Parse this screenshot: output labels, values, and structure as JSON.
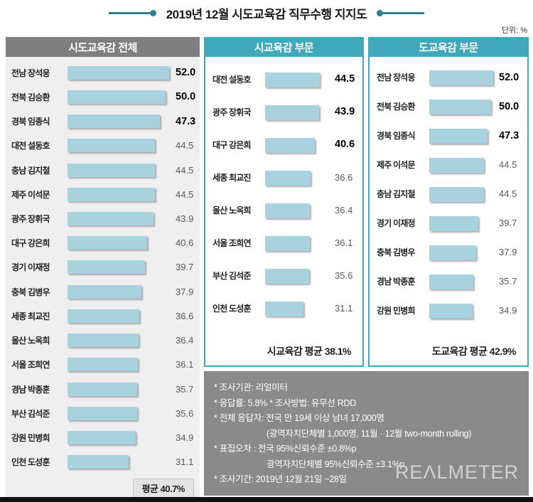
{
  "title": "2019년 12월 시도교육감 직무수행 지지도",
  "unit_label": "단위: %",
  "colors": {
    "accent_teal_dark": "#2e7e8e",
    "accent_teal": "#41a7ba",
    "header_gray": "#7f7f7f",
    "bar_fill": "#a8d2df",
    "panel_bg": "#efefef",
    "notes_bg": "#8a8a8a",
    "bottom_bar": "#111111"
  },
  "chart_data": [
    {
      "type": "bar",
      "orientation": "horizontal",
      "title": "시도교육감 전체",
      "categories": [
        "전남 장석웅",
        "전북 김승환",
        "경북 임종식",
        "대전 설동호",
        "충남 김지철",
        "제주 이석문",
        "광주 장휘국",
        "대구 강은희",
        "경기 이재정",
        "충북 김병우",
        "세종 최교진",
        "울산 노옥희",
        "서울 조희연",
        "경남 박종훈",
        "부산 김석준",
        "강원 민병희",
        "인천 도성훈"
      ],
      "values": [
        52.0,
        50.0,
        47.3,
        44.5,
        44.5,
        44.5,
        43.9,
        40.6,
        39.7,
        37.9,
        36.6,
        36.4,
        36.1,
        35.7,
        35.6,
        34.9,
        31.1
      ],
      "average_label": "평균 40.7%",
      "xlim": [
        0,
        55
      ],
      "value_labels": true,
      "highlighted_top_n": 3
    },
    {
      "type": "bar",
      "orientation": "horizontal",
      "title": "시교육감 부문",
      "categories": [
        "대전 설동호",
        "광주 장휘국",
        "대구 강은희",
        "세종 최교진",
        "울산 노옥희",
        "서울 조희연",
        "부산 김석준",
        "인천 도성훈"
      ],
      "values": [
        44.5,
        43.9,
        40.6,
        36.6,
        36.4,
        36.1,
        35.6,
        31.1
      ],
      "average_label": "시교육감 평균 38.1%",
      "xlim": [
        0,
        55
      ],
      "value_labels": true,
      "highlighted_top_n": 3
    },
    {
      "type": "bar",
      "orientation": "horizontal",
      "title": "도교육감 부문",
      "categories": [
        "전남 장석웅",
        "전북 김승환",
        "경북 임종식",
        "제주 이석문",
        "충남 김지철",
        "경기 이재정",
        "충북 김병우",
        "경남 박종훈",
        "강원 민병희"
      ],
      "values": [
        52.0,
        50.0,
        47.3,
        44.5,
        44.5,
        39.7,
        37.9,
        35.7,
        34.9
      ],
      "average_label": "도교육감 평균 42.9%",
      "xlim": [
        0,
        55
      ],
      "value_labels": true,
      "highlighted_top_n": 3
    }
  ],
  "notes": {
    "lines": [
      {
        "text": "* 조사기관: 리얼미터",
        "indent": false
      },
      {
        "text": "* 응답률: 5.8% * 조사방법: 유무선 RDD",
        "indent": false
      },
      {
        "text": "* 전체 응답자: 전국 만 19세 이상 남녀 17,000명",
        "indent": false
      },
      {
        "text": "(광역자치단체별 1,000명, 11월 · 12월 two-month rolling)",
        "indent": true
      },
      {
        "text": "* 표집오차 : 전국 95%신뢰수준 ±0.8%p",
        "indent": false
      },
      {
        "text": "광역자치단체별 95%신뢰수준 ±3.1%p",
        "indent": true
      },
      {
        "text": "* 조사기간: 2019년 12월 21일 ~28일",
        "indent": false
      }
    ],
    "logo": "REΛLMETER"
  }
}
